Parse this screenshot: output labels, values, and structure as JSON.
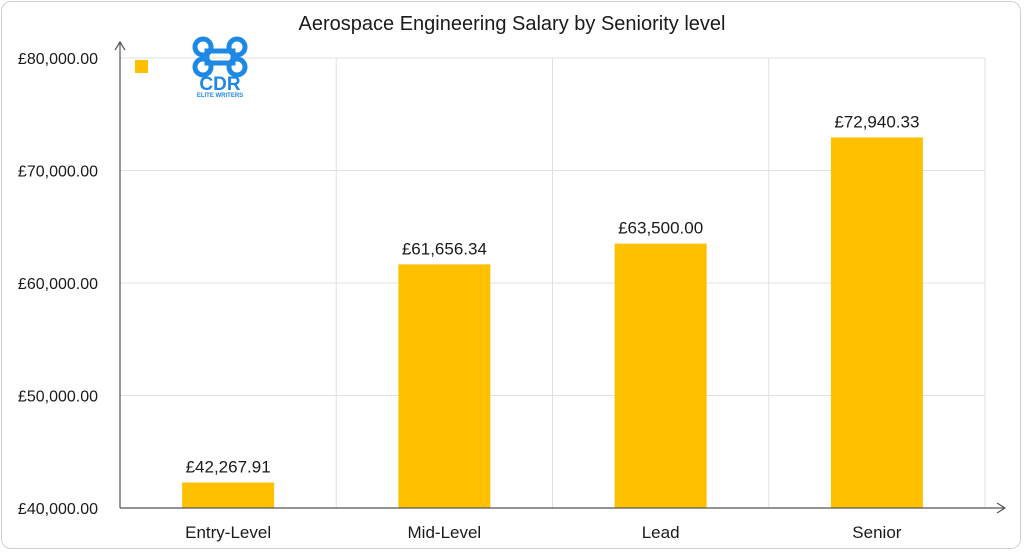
{
  "chart_data": {
    "type": "bar",
    "title": "Aerospace Engineering Salary by Seniority level",
    "xlabel": "",
    "ylabel": "",
    "categories": [
      "Entry-Level",
      "Mid-Level",
      "Lead",
      "Senior"
    ],
    "values": [
      42267.91,
      61656.34,
      63500.0,
      72940.33
    ],
    "value_labels": [
      "£42,267.91",
      "£61,656.34",
      "£63,500.00",
      "£72,940.33"
    ],
    "ylim": [
      40000,
      80000
    ],
    "y_ticks": [
      40000,
      50000,
      60000,
      70000,
      80000
    ],
    "y_tick_labels": [
      "£40,000.00",
      "£50,000.00",
      "£60,000.00",
      "£70,000.00",
      "£80,000.00"
    ],
    "grid": true,
    "legend": "top-left",
    "bar_color": "#FFC000"
  },
  "logo": {
    "name": "cdr-logo",
    "text": "CDR",
    "subtext": "ELITE WRITERS",
    "color": "#1E88E5"
  }
}
